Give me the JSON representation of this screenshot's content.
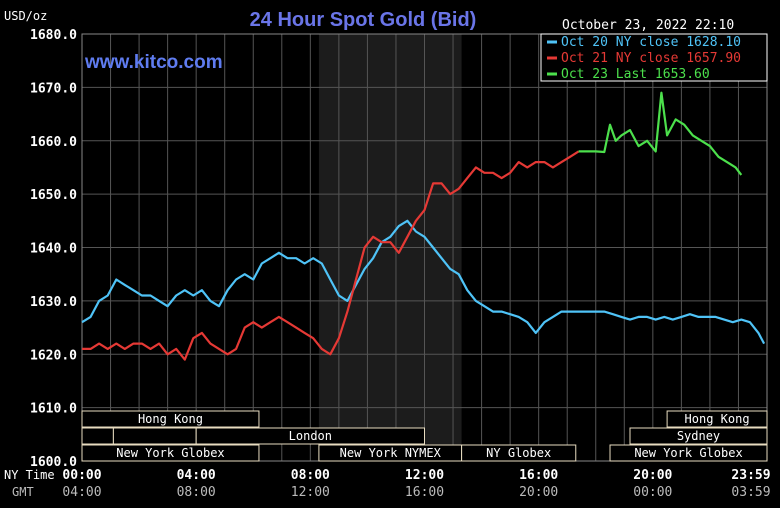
{
  "header": {
    "unit": "USD/oz",
    "title": "24 Hour Spot Gold (Bid)",
    "timestamp": "October 23, 2022 22:10",
    "watermark": "www.kitco.com"
  },
  "legend": [
    {
      "label": "Oct 20 NY close 1628.10",
      "color": "#4FC3F7"
    },
    {
      "label": "Oct 21 NY close 1657.90",
      "color": "#E53935"
    },
    {
      "label": "Oct 23 Last 1653.60",
      "color": "#4CE04C"
    }
  ],
  "axis": {
    "row_label_ny": "NY Time",
    "row_label_gmt": "GMT"
  },
  "sessions": {
    "row1": [
      {
        "label": "Hong Kong",
        "start": 0,
        "end": 6.2
      },
      {
        "label": "Hong Kong",
        "start": 20.5,
        "end": 24
      }
    ],
    "row2": [
      {
        "label": "",
        "start": 0,
        "end": 1.1
      },
      {
        "label": "",
        "start": 1.1,
        "end": 4.0
      },
      {
        "label": "London",
        "start": 4.0,
        "end": 12.0
      },
      {
        "label": "Sydney",
        "start": 19.2,
        "end": 24
      }
    ],
    "row3": [
      {
        "label": "New York Globex",
        "start": 0,
        "end": 6.2
      },
      {
        "label": "New York NYMEX",
        "start": 8.3,
        "end": 13.3
      },
      {
        "label": "NY Globex",
        "start": 13.3,
        "end": 17.3
      },
      {
        "label": "New York Globex",
        "start": 18.5,
        "end": 24
      }
    ]
  },
  "chart_data": {
    "type": "line",
    "title": "24 Hour Spot Gold (Bid)",
    "ylabel": "USD/oz",
    "xlabel": "NY Time",
    "ylim": [
      1600,
      1680
    ],
    "xlim": [
      0,
      24
    ],
    "y_ticks": [
      "1600.0",
      "1610.0",
      "1620.0",
      "1630.0",
      "1640.0",
      "1650.0",
      "1660.0",
      "1670.0",
      "1680.0"
    ],
    "y_tick_values": [
      1600,
      1610,
      1620,
      1630,
      1640,
      1650,
      1660,
      1670,
      1680
    ],
    "x_ticks_ny": [
      "00:00",
      "04:00",
      "08:00",
      "12:00",
      "16:00",
      "20:00",
      "23:59"
    ],
    "x_ticks_gmt": [
      "04:00",
      "08:00",
      "12:00",
      "16:00",
      "20:00",
      "00:00",
      "03:59"
    ],
    "x_tick_hours": [
      0,
      4,
      8,
      12,
      16,
      20,
      23.98
    ],
    "shaded_region": [
      8.3,
      13.3
    ],
    "grid": true,
    "series": [
      {
        "name": "Oct 20",
        "color": "#4FC3F7",
        "x": [
          0,
          0.3,
          0.6,
          0.9,
          1.2,
          1.5,
          1.8,
          2.1,
          2.4,
          2.7,
          3.0,
          3.3,
          3.6,
          3.9,
          4.2,
          4.5,
          4.8,
          5.1,
          5.4,
          5.7,
          6.0,
          6.3,
          6.6,
          6.9,
          7.2,
          7.5,
          7.8,
          8.1,
          8.4,
          8.7,
          9.0,
          9.3,
          9.6,
          9.9,
          10.2,
          10.5,
          10.8,
          11.1,
          11.4,
          11.7,
          12.0,
          12.3,
          12.6,
          12.9,
          13.2,
          13.5,
          13.8,
          14.1,
          14.4,
          14.7,
          15.0,
          15.3,
          15.6,
          15.9,
          16.2,
          16.5,
          16.8,
          17.1,
          17.4,
          17.7,
          18.0,
          18.3,
          18.6,
          18.9,
          19.2,
          19.5,
          19.8,
          20.1,
          20.4,
          20.7,
          21.0,
          21.3,
          21.6,
          21.9,
          22.2,
          22.5,
          22.8,
          23.1,
          23.4,
          23.7,
          23.9
        ],
        "y": [
          1626,
          1627,
          1630,
          1631,
          1634,
          1633,
          1632,
          1631,
          1631,
          1630,
          1629,
          1631,
          1632,
          1631,
          1632,
          1630,
          1629,
          1632,
          1634,
          1635,
          1634,
          1637,
          1638,
          1639,
          1638,
          1638,
          1637,
          1638,
          1637,
          1634,
          1631,
          1630,
          1633,
          1636,
          1638,
          1641,
          1642,
          1644,
          1645,
          1643,
          1642,
          1640,
          1638,
          1636,
          1635,
          1632,
          1630,
          1629,
          1628,
          1628,
          1627.5,
          1627,
          1626,
          1624,
          1626,
          1627,
          1628,
          1628,
          1628,
          1628,
          1628,
          1628,
          1627.5,
          1627,
          1626.5,
          1627,
          1627,
          1626.5,
          1627,
          1626.5,
          1627,
          1627.5,
          1627,
          1627,
          1627,
          1626.5,
          1626,
          1626.5,
          1626,
          1624,
          1622
        ]
      },
      {
        "name": "Oct 21",
        "color": "#E53935",
        "x": [
          0,
          0.3,
          0.6,
          0.9,
          1.2,
          1.5,
          1.8,
          2.1,
          2.4,
          2.7,
          3.0,
          3.3,
          3.6,
          3.9,
          4.2,
          4.5,
          4.8,
          5.1,
          5.4,
          5.7,
          6.0,
          6.3,
          6.6,
          6.9,
          7.2,
          7.5,
          7.8,
          8.1,
          8.4,
          8.7,
          9.0,
          9.3,
          9.6,
          9.9,
          10.2,
          10.5,
          10.8,
          11.1,
          11.4,
          11.7,
          12.0,
          12.3,
          12.6,
          12.9,
          13.2,
          13.5,
          13.8,
          14.1,
          14.4,
          14.7,
          15.0,
          15.3,
          15.6,
          15.9,
          16.2,
          16.5,
          16.8,
          17.1,
          17.4
        ],
        "y": [
          1621,
          1621,
          1622,
          1621,
          1622,
          1621,
          1622,
          1622,
          1621,
          1622,
          1620,
          1621,
          1619,
          1623,
          1624,
          1622,
          1621,
          1620,
          1621,
          1625,
          1626,
          1625,
          1626,
          1627,
          1626,
          1625,
          1624,
          1623,
          1621,
          1620,
          1623,
          1628,
          1634,
          1640,
          1642,
          1641,
          1641,
          1639,
          1642,
          1645,
          1647,
          1652,
          1652,
          1650,
          1651,
          1653,
          1655,
          1654,
          1654,
          1653,
          1654,
          1656,
          1655,
          1656,
          1656,
          1655,
          1656,
          1657,
          1658
        ]
      },
      {
        "name": "Oct 23",
        "color": "#4CE04C",
        "x": [
          17.4,
          17.7,
          18.0,
          18.3,
          18.5,
          18.7,
          18.9,
          19.2,
          19.5,
          19.8,
          20.1,
          20.3,
          20.5,
          20.8,
          21.1,
          21.4,
          21.7,
          22.0,
          22.3,
          22.6,
          22.9,
          23.1
        ],
        "y": [
          1658,
          1658,
          1658,
          1657.9,
          1663,
          1660,
          1661,
          1662,
          1659,
          1660,
          1658,
          1669,
          1661,
          1664,
          1663,
          1661,
          1660,
          1659,
          1657,
          1656,
          1655,
          1653.6
        ]
      }
    ]
  }
}
